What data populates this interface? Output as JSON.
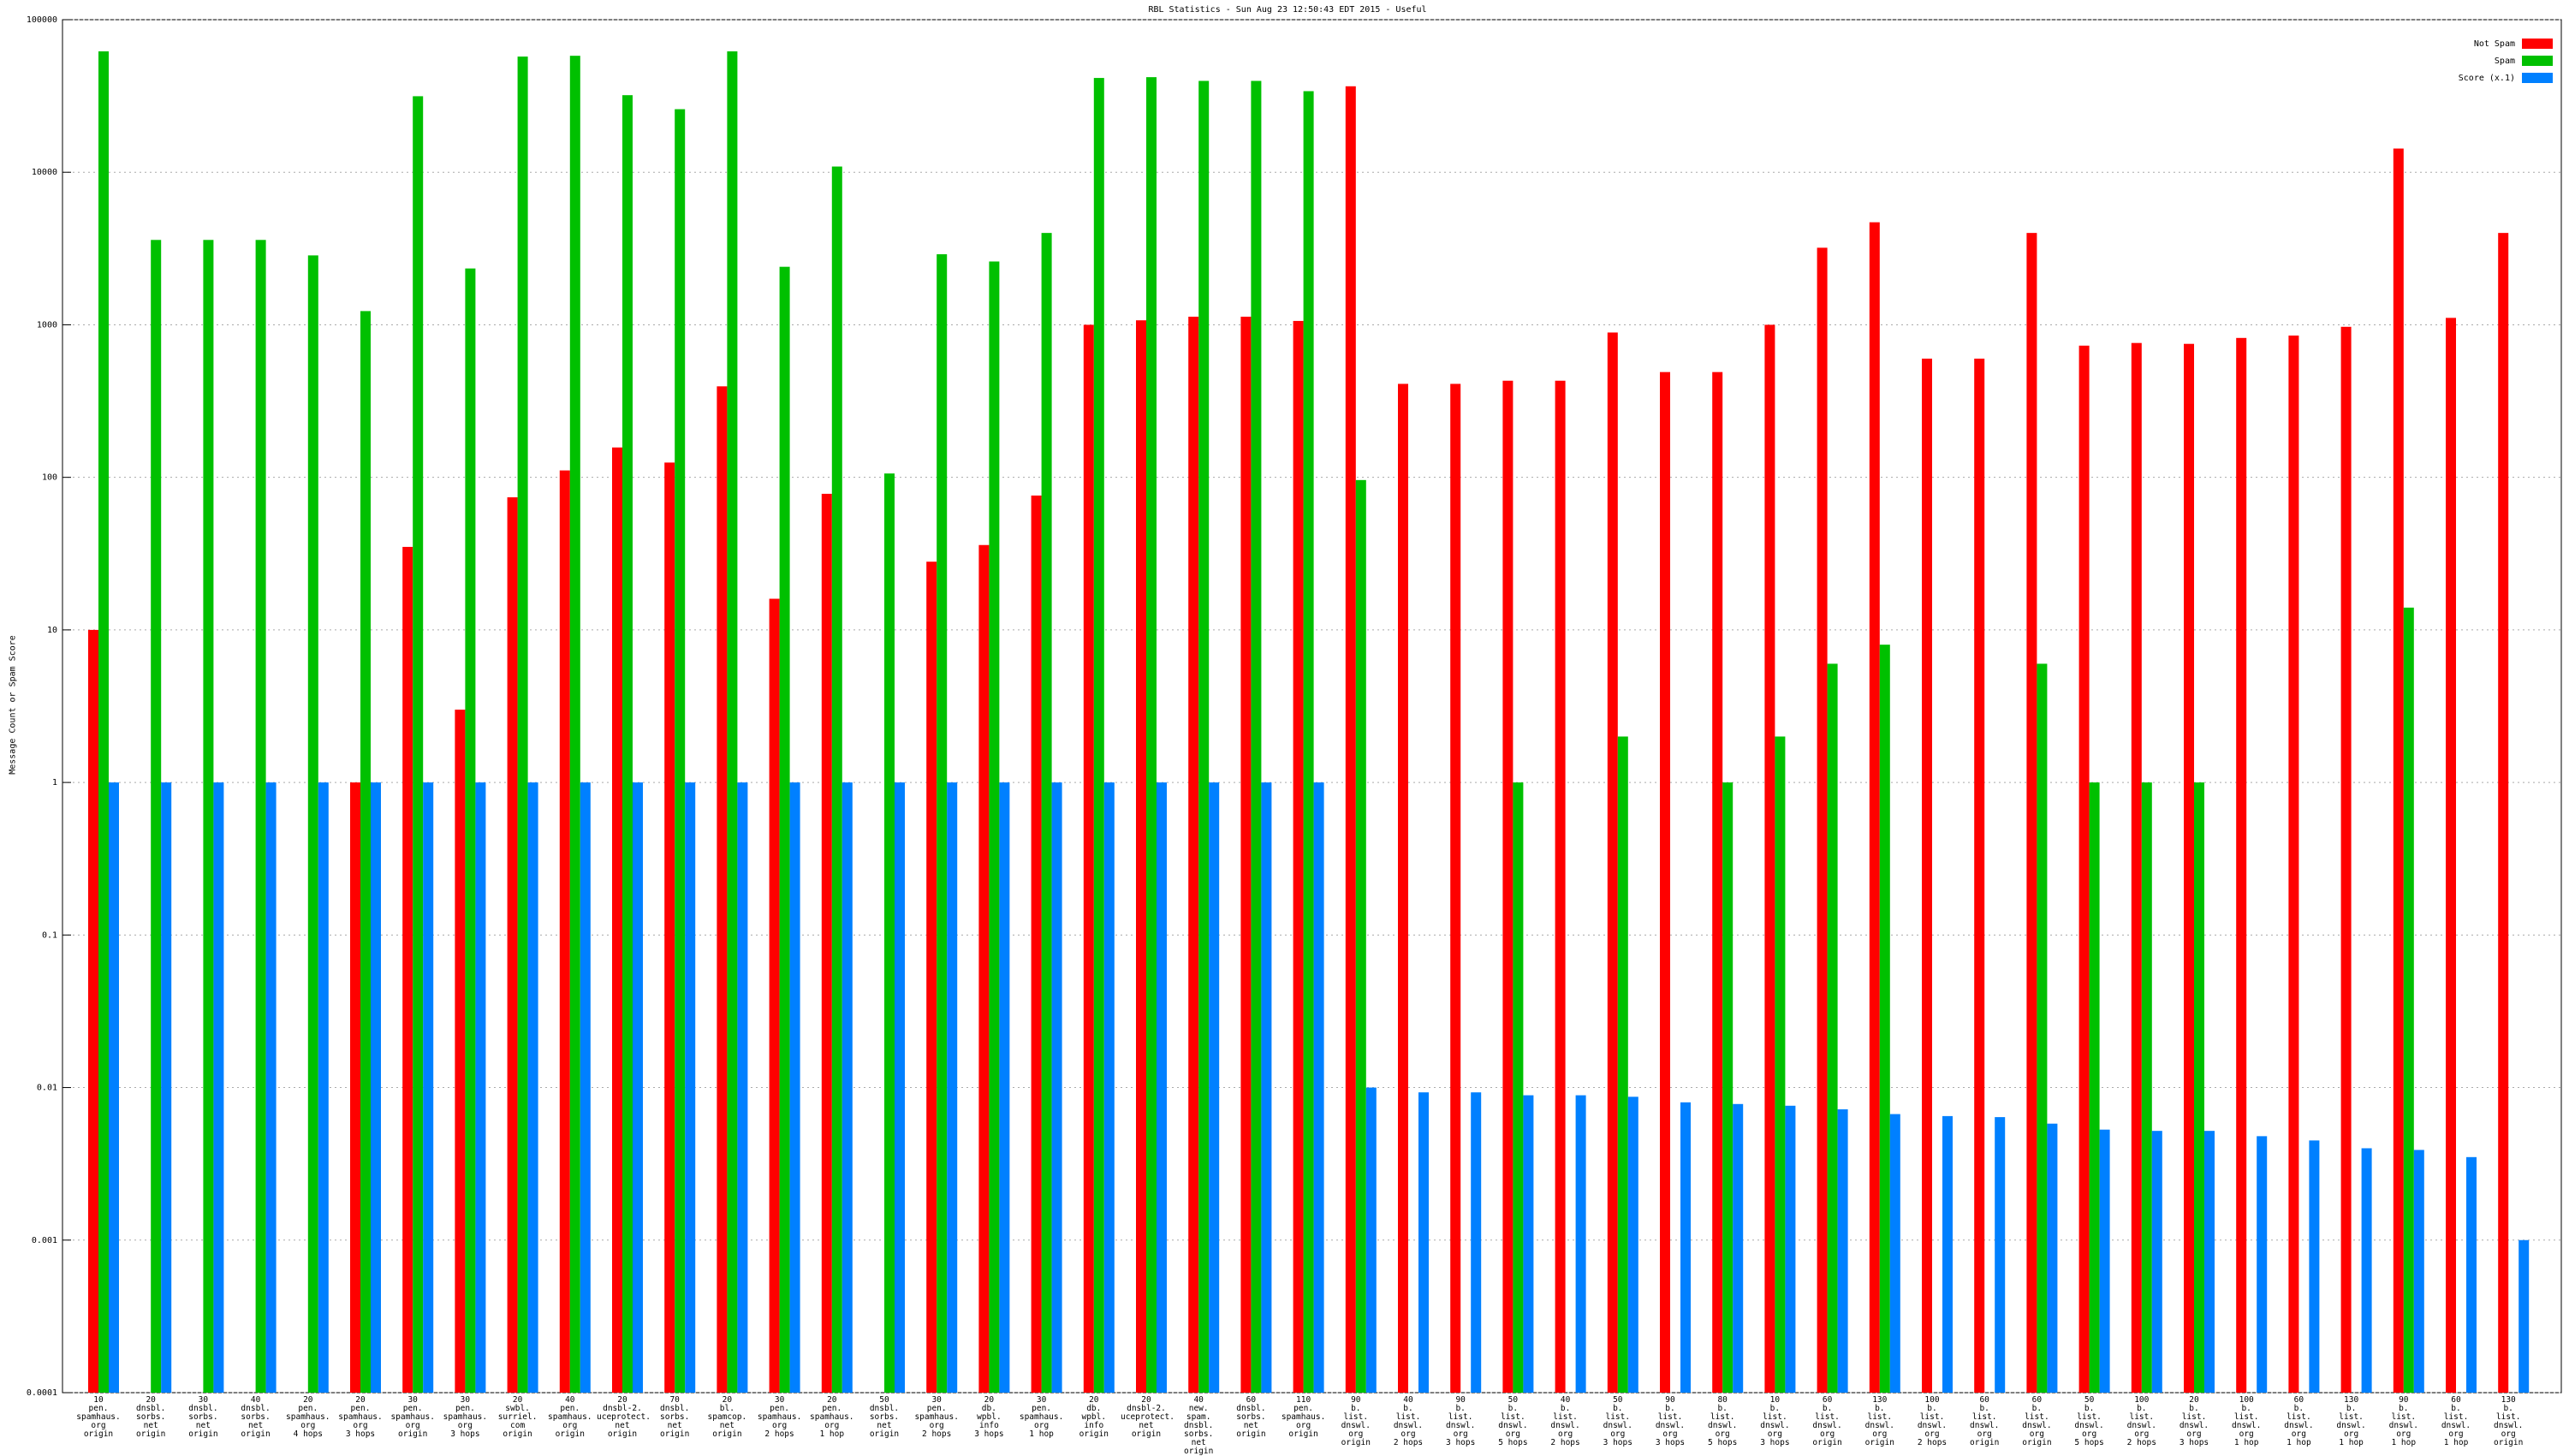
{
  "chart_data": {
    "type": "bar",
    "title": "RBL Statistics - Sun Aug 23 12:50:43 EDT 2015 - Useful",
    "y_label": "Message Count or Spam Score",
    "log_scale": true,
    "grid": true,
    "legend_position": "top-right",
    "ylim": [
      0.0001,
      100000
    ],
    "yticks": [
      0.0001,
      0.001,
      0.01,
      0.1,
      1,
      10,
      100,
      1000,
      10000,
      100000
    ],
    "categories": [
      "10\npen.\nspamhaus.\norg\norigin",
      "20\ndnsbl.\nsorbs.\nnet\norigin",
      "30\ndnsbl.\nsorbs.\nnet\norigin",
      "40\ndnsbl.\nsorbs.\nnet\norigin",
      "20\npen.\nspamhaus.\norg\n4 hops",
      "20\npen.\nspamhaus.\norg\n3 hops",
      "30\npen.\nspamhaus.\norg\norigin",
      "30\npen.\nspamhaus.\norg\n3 hops",
      "20\nswbl.\nsurriel.\ncom\norigin",
      "40\npen.\nspamhaus.\norg\norigin",
      "20\ndnsbl-2.\nuceprotect.\nnet\norigin",
      "70\ndnsbl.\nsorbs.\nnet\norigin",
      "20\nbl.\nspamcop.\nnet\norigin",
      "30\npen.\nspamhaus.\norg\n2 hops",
      "20\npen.\nspamhaus.\norg\n1 hop",
      "50\ndnsbl.\nsorbs.\nnet\norigin",
      "30\npen.\nspamhaus.\norg\n2 hops",
      "20\ndb.\nwpbl.\ninfo\n3 hops",
      "30\npen.\nspamhaus.\norg\n1 hop",
      "20\ndb.\nwpbl.\ninfo\norigin",
      "20\ndnsbl-2.\nuceprotect.\nnet\norigin",
      "40\nnew.\nspam.\ndnsbl.\nsorbs.\nnet\norigin",
      "60\ndnsbl.\nsorbs.\nnet\norigin",
      "110\npen.\nspamhaus.\norg\norigin",
      "90\nb.\nlist.\ndnswl.\norg\norigin",
      "40\nb.\nlist.\ndnswl.\norg\n2 hops",
      "90\nb.\nlist.\ndnswl.\norg\n3 hops",
      "50\nb.\nlist.\ndnswl.\norg\n5 hops",
      "40\nb.\nlist.\ndnswl.\norg\n2 hops",
      "50\nb.\nlist.\ndnswl.\norg\n3 hops",
      "90\nb.\nlist.\ndnswl.\norg\n3 hops",
      "80\nb.\nlist.\ndnswl.\norg\n5 hops",
      "10\nb.\nlist.\ndnswl.\norg\n3 hops",
      "60\nb.\nlist.\ndnswl.\norg\norigin",
      "130\nb.\nlist.\ndnswl.\norg\norigin",
      "100\nb.\nlist.\ndnswl.\norg\n2 hops",
      "60\nb.\nlist.\ndnswl.\norg\norigin",
      "60\nb.\nlist.\ndnswl.\norg\norigin",
      "50\nb.\nlist.\ndnswl.\norg\n5 hops",
      "100\nb.\nlist.\ndnswl.\norg\n2 hops",
      "20\nb.\nlist.\ndnswl.\norg\n3 hops",
      "100\nb.\nlist.\ndnswl.\norg\n1 hop",
      "60\nb.\nlist.\ndnswl.\norg\n1 hop",
      "130\nb.\nlist.\ndnswl.\norg\n1 hop",
      "90\nb.\nlist.\ndnswl.\norg\n1 hop",
      "60\nb.\nlist.\ndnswl.\norg\n1 hop",
      "130\nb.\nlist.\ndnswl.\norg\norigin"
    ],
    "series": [
      {
        "name": "Not Spam",
        "color": "#ff0000",
        "values": [
          10,
          null,
          null,
          null,
          null,
          1,
          35,
          3,
          74,
          111,
          157,
          125,
          395,
          16,
          78,
          null,
          28,
          36,
          76,
          1000,
          1070,
          1130,
          1130,
          1060,
          36600,
          410,
          410,
          430,
          430,
          890,
          490,
          490,
          1000,
          3200,
          4700,
          600,
          600,
          4000,
          730,
          760,
          750,
          820,
          850,
          970,
          14300,
          1110,
          4000
        ]
      },
      {
        "name": "Spam",
        "color": "#00c000",
        "values": [
          62000,
          3600,
          3600,
          3600,
          2850,
          1230,
          31500,
          2340,
          57300,
          58000,
          32000,
          25900,
          62000,
          2400,
          10900,
          106,
          2900,
          2600,
          4000,
          41500,
          42000,
          39700,
          39700,
          34000,
          96,
          null,
          null,
          1,
          null,
          2,
          null,
          1,
          2,
          6,
          8,
          null,
          null,
          6,
          1,
          1,
          1,
          null,
          null,
          null,
          14,
          null,
          null
        ]
      },
      {
        "name": "Score (x.1)",
        "color": "#0080ff",
        "values": [
          1,
          1,
          1,
          1,
          1,
          1,
          1,
          1,
          1,
          1,
          1,
          1,
          1,
          1,
          1,
          1,
          1,
          1,
          1,
          1,
          1,
          1,
          1,
          1,
          0.01,
          0.0093,
          0.0093,
          0.0089,
          0.0089,
          0.0087,
          0.008,
          0.0078,
          0.0076,
          0.0072,
          0.0067,
          0.0065,
          0.0064,
          0.0058,
          0.0053,
          0.0052,
          0.0052,
          0.0048,
          0.0045,
          0.004,
          0.0039,
          0.0035,
          0.001
        ]
      }
    ]
  }
}
